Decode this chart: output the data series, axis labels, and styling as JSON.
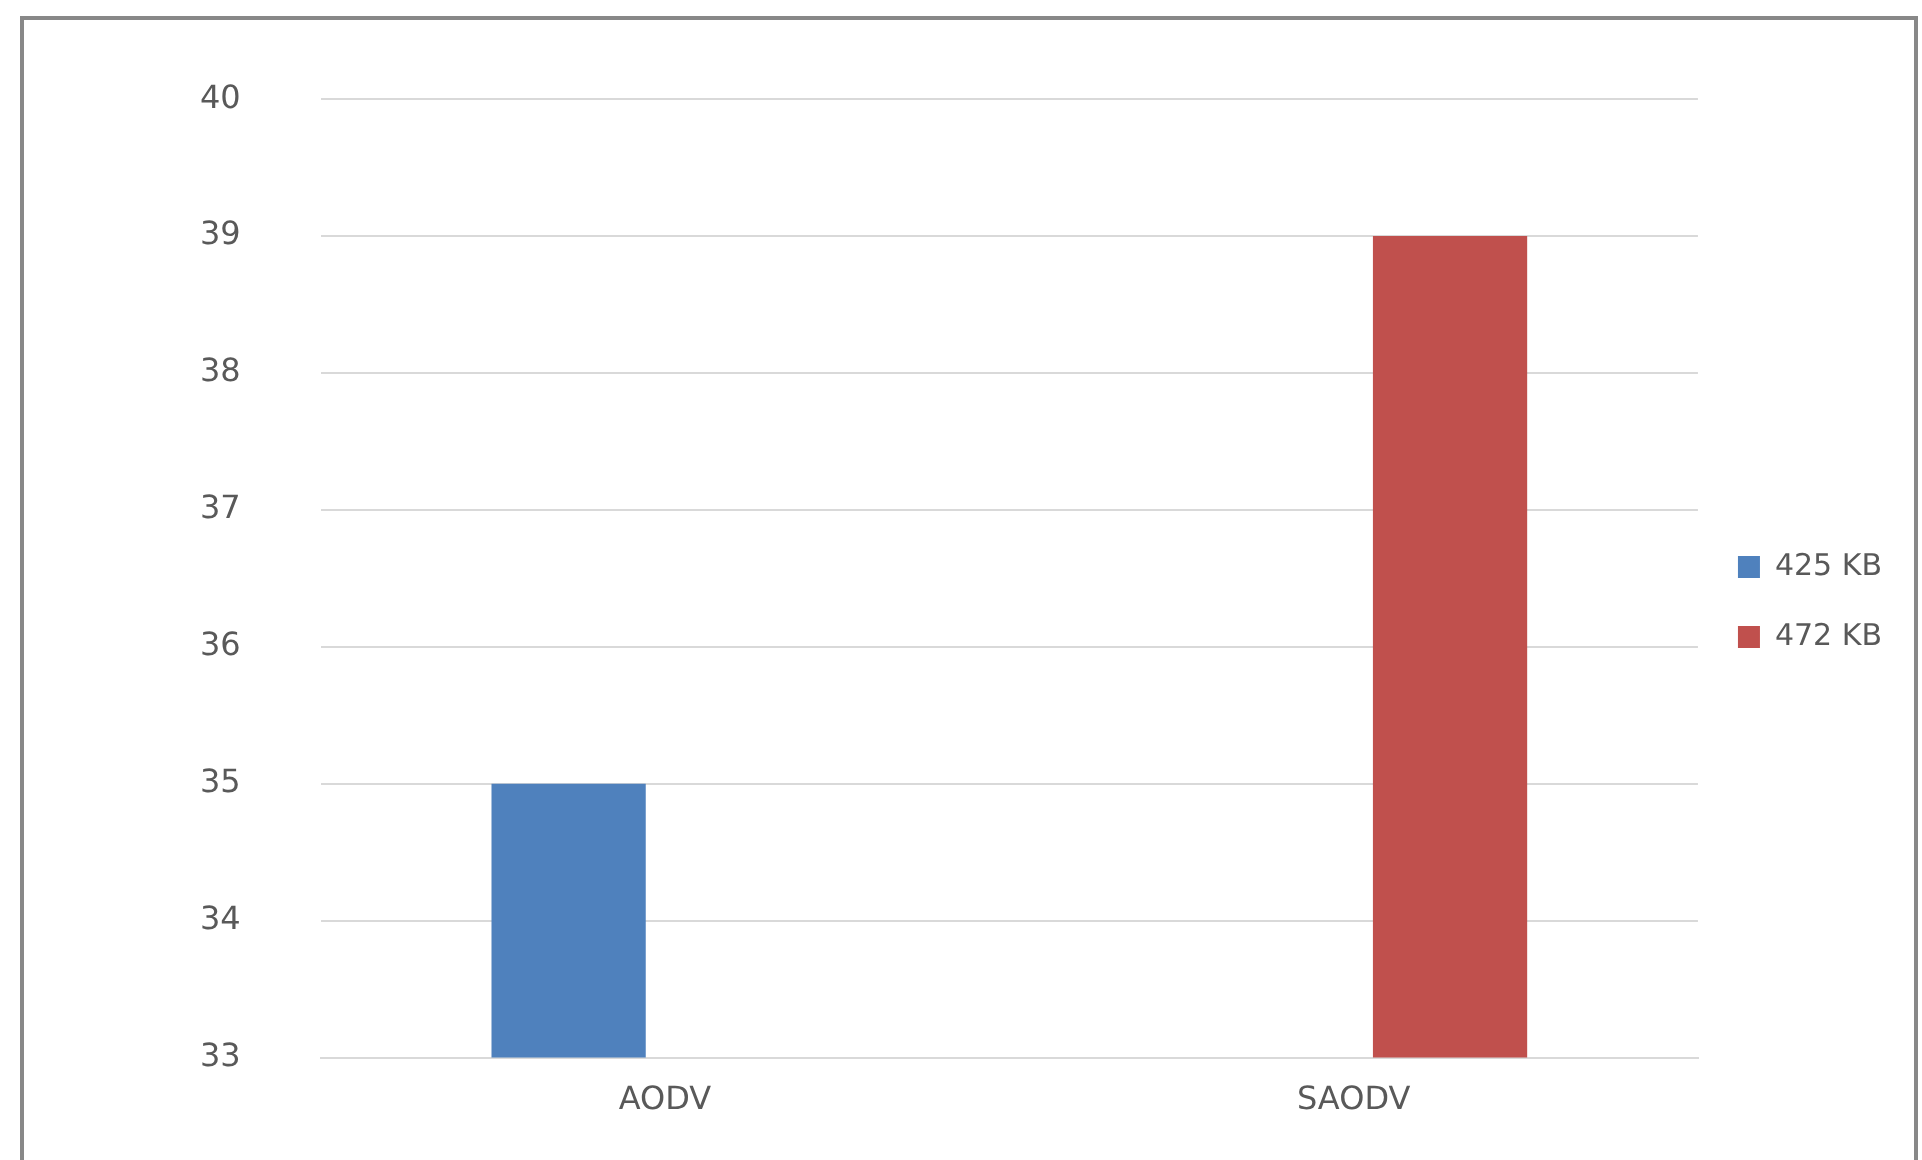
{
  "chart_data": {
    "type": "bar",
    "categories": [
      "AODV",
      "SAODV"
    ],
    "series": [
      {
        "name": "425 KB",
        "color": "#4f81bd",
        "values": [
          35,
          null
        ]
      },
      {
        "name": "472 KB",
        "color": "#c0504d",
        "values": [
          null,
          39
        ]
      }
    ],
    "ylim": [
      33,
      40
    ],
    "yticks": [
      33,
      34,
      35,
      36,
      37,
      38,
      39,
      40
    ],
    "grid": "y",
    "legend": "right"
  }
}
